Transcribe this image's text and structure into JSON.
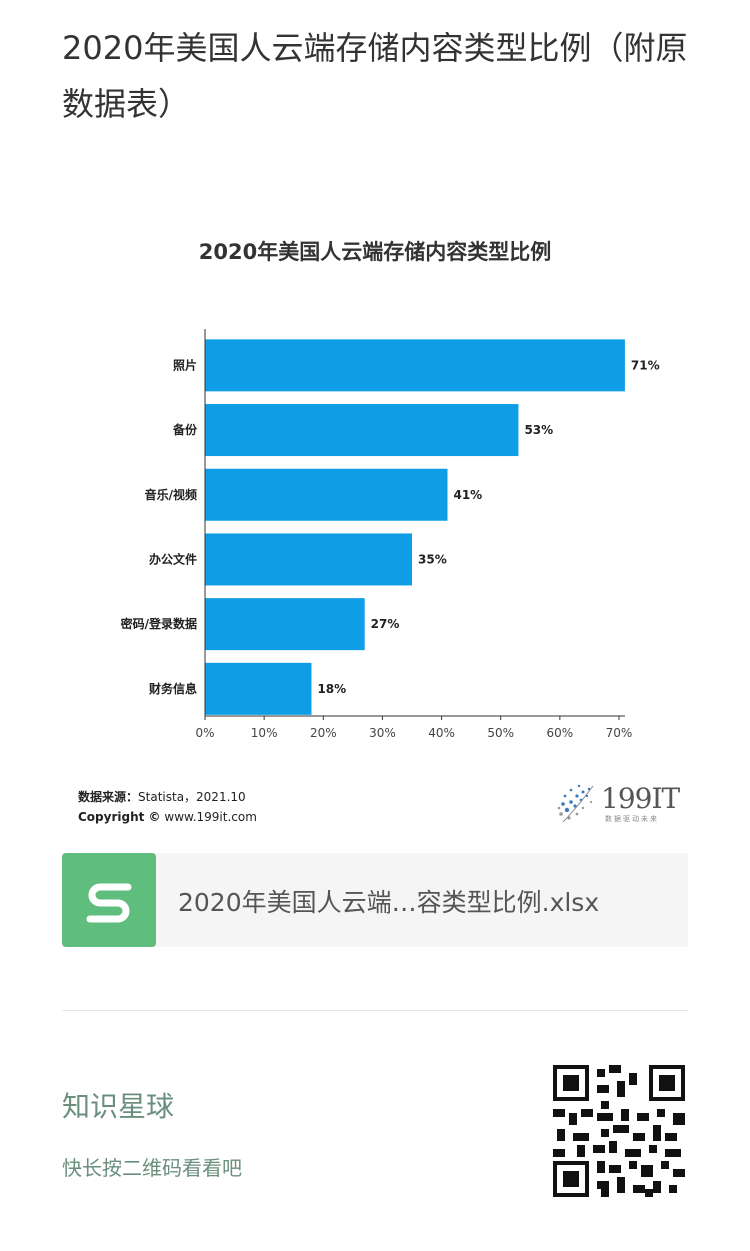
{
  "article": {
    "title": "2020年美国人云端存储内容类型比例（附原数据表）"
  },
  "chart_data": {
    "type": "bar",
    "orientation": "horizontal",
    "title": "2020年美国人云端存储内容类型比例",
    "categories": [
      "照片",
      "备份",
      "音乐/视频",
      "办公文件",
      "密码/登录数据",
      "财务信息"
    ],
    "values": [
      71,
      53,
      41,
      35,
      27,
      18
    ],
    "value_suffix": "%",
    "xlim": [
      0,
      70
    ],
    "xticks": [
      "0%",
      "10%",
      "20%",
      "30%",
      "40%",
      "50%",
      "60%",
      "70%"
    ],
    "xlabel": "",
    "ylabel": "",
    "bar_color": "#0f9ee6",
    "grid": false,
    "legend": "none"
  },
  "source": {
    "label": "数据来源：",
    "text": "Statista，2021.10",
    "copyright_label": "Copyright ©",
    "copyright_text": "www.199it.com"
  },
  "logo": {
    "name": "199IT",
    "tagline": "数据驱动未来",
    "icon": "dandelion-logo-icon"
  },
  "file_card": {
    "name": "2020年美国人云端…容类型比例.xlsx",
    "icon": "spreadsheet-s-icon",
    "icon_color": "#5fbe7e"
  },
  "promo": {
    "title": "知识星球",
    "subtitle": "快长按二维码看看吧",
    "qr_icon": "qr-code-icon"
  }
}
